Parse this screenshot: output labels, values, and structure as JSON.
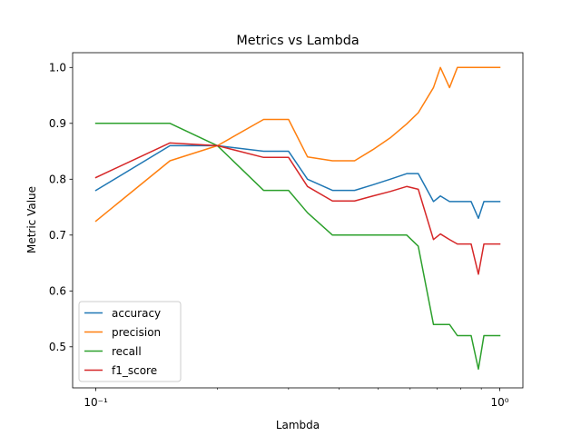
{
  "chart_data": {
    "type": "line",
    "title": "Metrics vs Lambda",
    "xlabel": "Lambda",
    "ylabel": "Metric Value",
    "xscale": "log",
    "xlim": [
      0.0876,
      1.141
    ],
    "ylim": [
      0.4265,
      1.0265
    ],
    "xticks": [
      {
        "value": 0.1,
        "label": "10⁻¹"
      },
      {
        "value": 1.0,
        "label": "10⁰"
      }
    ],
    "yticks": [
      0.5,
      0.6,
      0.7,
      0.8,
      0.9,
      1.0
    ],
    "ytick_labels": [
      "0.5",
      "0.6",
      "0.7",
      "0.8",
      "0.9",
      "1.0"
    ],
    "grid": false,
    "legend_position": "lower-left",
    "x": [
      0.1,
      0.1526,
      0.2,
      0.2602,
      0.3,
      0.3342,
      0.3853,
      0.4371,
      0.4853,
      0.5355,
      0.5883,
      0.6284,
      0.6853,
      0.7129,
      0.751,
      0.7853,
      0.8134,
      0.8495,
      0.8853,
      0.9136,
      0.947,
      0.9707,
      1.0
    ],
    "series": [
      {
        "name": "accuracy",
        "color": "#1f77b4",
        "values": [
          0.78,
          0.86,
          0.86,
          0.85,
          0.85,
          0.8,
          0.78,
          0.78,
          0.79,
          0.8,
          0.81,
          0.81,
          0.76,
          0.77,
          0.76,
          0.76,
          0.76,
          0.76,
          0.73,
          0.76,
          0.76,
          0.76,
          0.76
        ]
      },
      {
        "name": "precision",
        "color": "#ff7f0e",
        "values": [
          0.725,
          0.833,
          0.86,
          0.907,
          0.907,
          0.84,
          0.833,
          0.833,
          0.853,
          0.874,
          0.899,
          0.919,
          0.964,
          1.0,
          0.964,
          1.0,
          1.0,
          1.0,
          1.0,
          1.0,
          1.0,
          1.0,
          1.0
        ]
      },
      {
        "name": "recall",
        "color": "#2ca02c",
        "values": [
          0.9,
          0.9,
          0.86,
          0.78,
          0.78,
          0.74,
          0.7,
          0.7,
          0.7,
          0.7,
          0.7,
          0.68,
          0.54,
          0.54,
          0.54,
          0.52,
          0.52,
          0.52,
          0.46,
          0.52,
          0.52,
          0.52,
          0.52
        ]
      },
      {
        "name": "f1_score",
        "color": "#d62728",
        "values": [
          0.803,
          0.865,
          0.86,
          0.839,
          0.839,
          0.787,
          0.761,
          0.761,
          0.77,
          0.778,
          0.787,
          0.782,
          0.692,
          0.702,
          0.692,
          0.684,
          0.684,
          0.684,
          0.63,
          0.684,
          0.684,
          0.684,
          0.684
        ]
      }
    ]
  }
}
